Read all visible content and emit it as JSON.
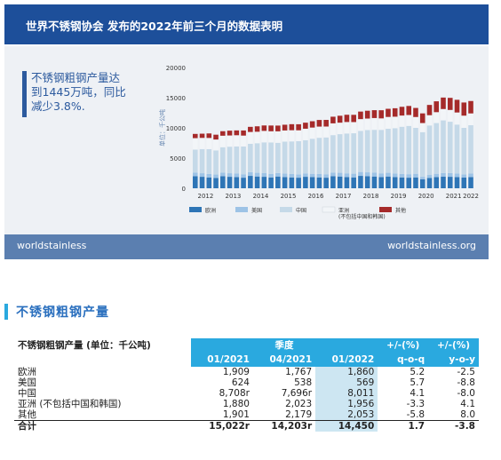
{
  "banner": {
    "title": "世界不锈钢协会 发布的2022年前三个月的数据表明"
  },
  "callout": {
    "text": "不锈钢粗钢产量达到1445万吨，同比减少3.8%."
  },
  "footer": {
    "left": "worldstainless",
    "right": "worldstainless.org"
  },
  "section": {
    "title": "不锈钢粗钢产量"
  },
  "chart_data": {
    "type": "bar",
    "stacked": true,
    "ylabel": "单位：千公吨",
    "ylim": [
      0,
      20000
    ],
    "yticks": [
      0,
      5000,
      10000,
      15000,
      20000
    ],
    "xtick_labels": [
      "2012",
      "2013",
      "2014",
      "2015",
      "2016",
      "2017",
      "2018",
      "2019",
      "2020",
      "2021",
      "2022"
    ],
    "legend": [
      {
        "name": "欧洲",
        "color": "#2e75b6"
      },
      {
        "name": "美国",
        "color": "#9dc3e6"
      },
      {
        "name": "中国",
        "color": "#c5d9e8"
      },
      {
        "name": "亚洲\n(不包括中国和韩国)",
        "color": "#f2f5f8"
      },
      {
        "name": "其他",
        "color": "#a52a2a"
      }
    ],
    "quarters": 41,
    "series": [
      {
        "name": "欧洲",
        "values": [
          2000,
          1900,
          1800,
          1700,
          2000,
          1900,
          1850,
          1750,
          2050,
          1950,
          1900,
          1800,
          1950,
          1850,
          1800,
          1750,
          1900,
          1850,
          1800,
          1750,
          2000,
          1950,
          1850,
          1800,
          2050,
          2000,
          1950,
          1850,
          1950,
          1850,
          1800,
          1750,
          1800,
          1500,
          1700,
          1850,
          1909,
          1900,
          1850,
          1767,
          1860
        ]
      },
      {
        "name": "美国",
        "values": [
          600,
          590,
          580,
          570,
          600,
          590,
          580,
          570,
          620,
          610,
          600,
          590,
          580,
          570,
          560,
          550,
          560,
          550,
          560,
          570,
          600,
          610,
          620,
          610,
          650,
          640,
          630,
          620,
          610,
          600,
          590,
          580,
          600,
          400,
          500,
          550,
          624,
          620,
          600,
          538,
          569
        ]
      },
      {
        "name": "中国",
        "values": [
          3800,
          4000,
          4100,
          4000,
          4200,
          4400,
          4500,
          4600,
          4700,
          4900,
          5100,
          5200,
          5000,
          5300,
          5400,
          5500,
          5500,
          5800,
          6000,
          6100,
          6200,
          6400,
          6600,
          6700,
          6800,
          7000,
          7100,
          7200,
          7300,
          7500,
          7800,
          8000,
          7600,
          7400,
          8200,
          8400,
          8708,
          8500,
          8100,
          7696,
          8011
        ]
      },
      {
        "name": "亚洲(不包括中国和韩国)",
        "values": [
          1900,
          1850,
          1850,
          1800,
          1900,
          1850,
          1850,
          1800,
          1950,
          1900,
          1900,
          1850,
          1900,
          1850,
          1850,
          1800,
          1900,
          1850,
          1850,
          1800,
          1950,
          1900,
          1900,
          1850,
          1950,
          1900,
          1950,
          1900,
          1950,
          1900,
          1850,
          1800,
          1800,
          1500,
          1700,
          1800,
          1880,
          1950,
          2000,
          2023,
          1956
        ]
      },
      {
        "name": "其他",
        "values": [
          700,
          700,
          750,
          800,
          750,
          800,
          800,
          850,
          850,
          900,
          900,
          950,
          950,
          950,
          1000,
          1000,
          1000,
          1050,
          1100,
          1100,
          1100,
          1150,
          1200,
          1200,
          1250,
          1300,
          1300,
          1350,
          1350,
          1400,
          1450,
          1500,
          1500,
          1600,
          1700,
          1800,
          1901,
          2000,
          2100,
          2179,
          2053
        ]
      }
    ],
    "table": {
      "title": "不锈钢粗钢产量 (单位：千公吨)",
      "group_header": "季度",
      "columns": [
        "01/2021",
        "04/2021",
        "01/2022",
        "+/-(%)",
        "+/-(%)"
      ],
      "col_sub": [
        "",
        "",
        "",
        "q-o-q",
        "y-o-y"
      ],
      "rows": [
        {
          "label": "欧洲",
          "values": [
            "1,909",
            "1,767",
            "1,860",
            "5.2",
            "-2.5"
          ]
        },
        {
          "label": "美国",
          "values": [
            "624",
            "538",
            "569",
            "5.7",
            "-8.8"
          ]
        },
        {
          "label": "中国",
          "values": [
            "8,708r",
            "7,696r",
            "8,011",
            "4.1",
            "-8.0"
          ]
        },
        {
          "label": "亚洲 (不包括中国和韩国)",
          "values": [
            "1,880",
            "2,023",
            "1,956",
            "-3.3",
            "4.1"
          ]
        },
        {
          "label": "其他",
          "values": [
            "1,901",
            "2,179",
            "2,053",
            "-5.8",
            "8.0"
          ]
        },
        {
          "label": "合计",
          "values": [
            "15,022r",
            "14,203r",
            "14,450",
            "1.7",
            "-3.8"
          ]
        }
      ]
    }
  }
}
